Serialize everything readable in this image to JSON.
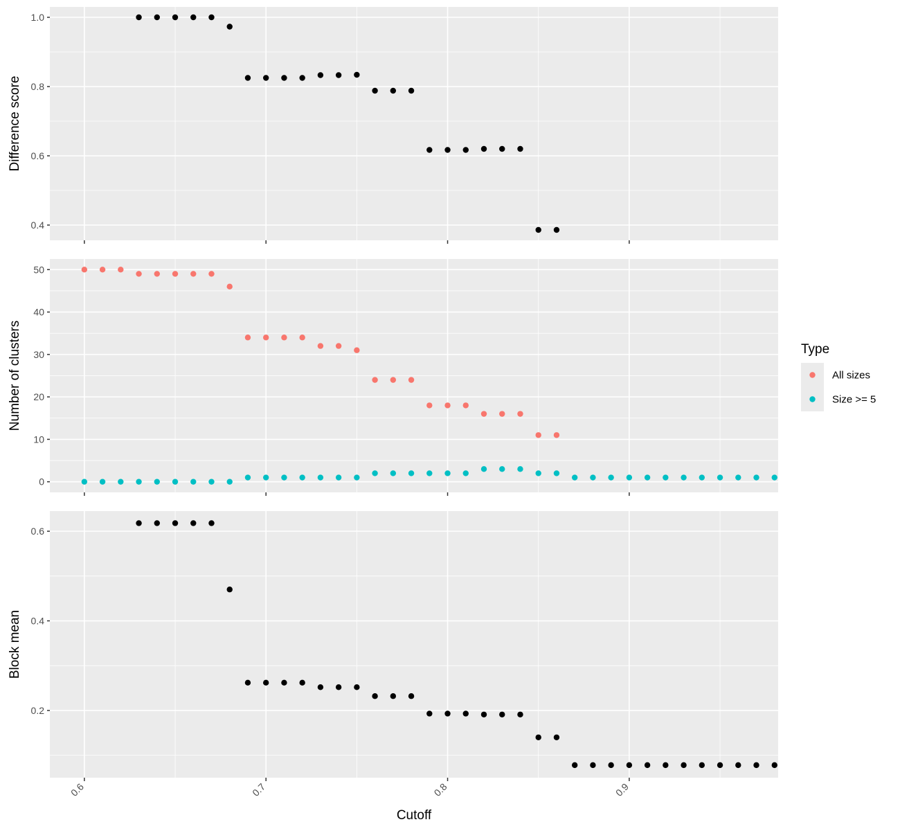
{
  "chart_data": {
    "type": "scatter",
    "x_axis": {
      "label": "Cutoff",
      "ticks": [
        0.6,
        0.7,
        0.8,
        0.9
      ],
      "tick_labels": [
        "0.6",
        "0.7",
        "0.8",
        "0.9"
      ],
      "lim": [
        0.581,
        0.982
      ]
    },
    "legend": {
      "title": "Type",
      "placement": "right",
      "entries": [
        {
          "label": "All sizes",
          "color": "#f8766d"
        },
        {
          "label": "Size >= 5",
          "color": "#00bfc4"
        }
      ]
    },
    "panels": [
      {
        "id": "difference",
        "ylabel": "Difference score",
        "ylim": [
          0.356,
          1.03
        ],
        "yticks": [
          0.4,
          0.6,
          0.8,
          1.0
        ],
        "ytick_labels": [
          "0.4",
          "0.6",
          "0.8",
          "1.0"
        ],
        "series": [
          {
            "color": "#000000",
            "x": [
              0.63,
              0.64,
              0.65,
              0.66,
              0.67,
              0.68,
              0.69,
              0.7,
              0.71,
              0.72,
              0.73,
              0.74,
              0.75,
              0.76,
              0.77,
              0.78,
              0.79,
              0.8,
              0.81,
              0.82,
              0.83,
              0.84,
              0.85,
              0.86
            ],
            "y": [
              1.0,
              1.0,
              1.0,
              1.0,
              1.0,
              0.973,
              0.825,
              0.825,
              0.825,
              0.825,
              0.833,
              0.833,
              0.834,
              0.788,
              0.788,
              0.788,
              0.617,
              0.617,
              0.617,
              0.62,
              0.62,
              0.62,
              0.386,
              0.386
            ]
          }
        ]
      },
      {
        "id": "clusters",
        "ylabel": "Number of clusters",
        "ylim": [
          -2.5,
          52.5
        ],
        "yticks": [
          0,
          10,
          20,
          30,
          40,
          50
        ],
        "ytick_labels": [
          "0",
          "10",
          "20",
          "30",
          "40",
          "50"
        ],
        "series": [
          {
            "name": "All sizes",
            "color": "#f8766d",
            "x": [
              0.6,
              0.61,
              0.62,
              0.63,
              0.64,
              0.65,
              0.66,
              0.67,
              0.68,
              0.69,
              0.7,
              0.71,
              0.72,
              0.73,
              0.74,
              0.75,
              0.76,
              0.77,
              0.78,
              0.79,
              0.8,
              0.81,
              0.82,
              0.83,
              0.84,
              0.85,
              0.86
            ],
            "y": [
              50,
              50,
              50,
              49,
              49,
              49,
              49,
              49,
              46,
              34,
              34,
              34,
              34,
              32,
              32,
              31,
              24,
              24,
              24,
              18,
              18,
              18,
              16,
              16,
              16,
              11,
              11
            ]
          },
          {
            "name": "Size >= 5",
            "color": "#00bfc4",
            "x": [
              0.6,
              0.61,
              0.62,
              0.63,
              0.64,
              0.65,
              0.66,
              0.67,
              0.68,
              0.69,
              0.7,
              0.71,
              0.72,
              0.73,
              0.74,
              0.75,
              0.76,
              0.77,
              0.78,
              0.79,
              0.8,
              0.81,
              0.82,
              0.83,
              0.84,
              0.85,
              0.86,
              0.87,
              0.88,
              0.89,
              0.9,
              0.91,
              0.92,
              0.93,
              0.94,
              0.95,
              0.96,
              0.97,
              0.98
            ],
            "y": [
              0,
              0,
              0,
              0,
              0,
              0,
              0,
              0,
              0,
              1,
              1,
              1,
              1,
              1,
              1,
              1,
              2,
              2,
              2,
              2,
              2,
              2,
              3,
              3,
              3,
              2,
              2,
              1,
              1,
              1,
              1,
              1,
              1,
              1,
              1,
              1,
              1,
              1,
              1
            ]
          }
        ]
      },
      {
        "id": "block",
        "ylabel": "Block mean",
        "ylim": [
          0.05,
          0.645
        ],
        "yticks": [
          0.2,
          0.4,
          0.6
        ],
        "ytick_labels": [
          "0.2",
          "0.4",
          "0.6"
        ],
        "series": [
          {
            "color": "#000000",
            "x": [
              0.63,
              0.64,
              0.65,
              0.66,
              0.67,
              0.68,
              0.69,
              0.7,
              0.71,
              0.72,
              0.73,
              0.74,
              0.75,
              0.76,
              0.77,
              0.78,
              0.79,
              0.8,
              0.81,
              0.82,
              0.83,
              0.84,
              0.85,
              0.86,
              0.87,
              0.88,
              0.89,
              0.9,
              0.91,
              0.92,
              0.93,
              0.94,
              0.95,
              0.96,
              0.97,
              0.98
            ],
            "y": [
              0.618,
              0.618,
              0.618,
              0.618,
              0.618,
              0.47,
              0.262,
              0.262,
              0.262,
              0.262,
              0.252,
              0.252,
              0.252,
              0.232,
              0.232,
              0.232,
              0.193,
              0.193,
              0.193,
              0.191,
              0.191,
              0.191,
              0.14,
              0.14,
              0.078,
              0.078,
              0.078,
              0.078,
              0.078,
              0.078,
              0.078,
              0.078,
              0.078,
              0.078,
              0.078,
              0.078
            ]
          }
        ]
      }
    ]
  }
}
